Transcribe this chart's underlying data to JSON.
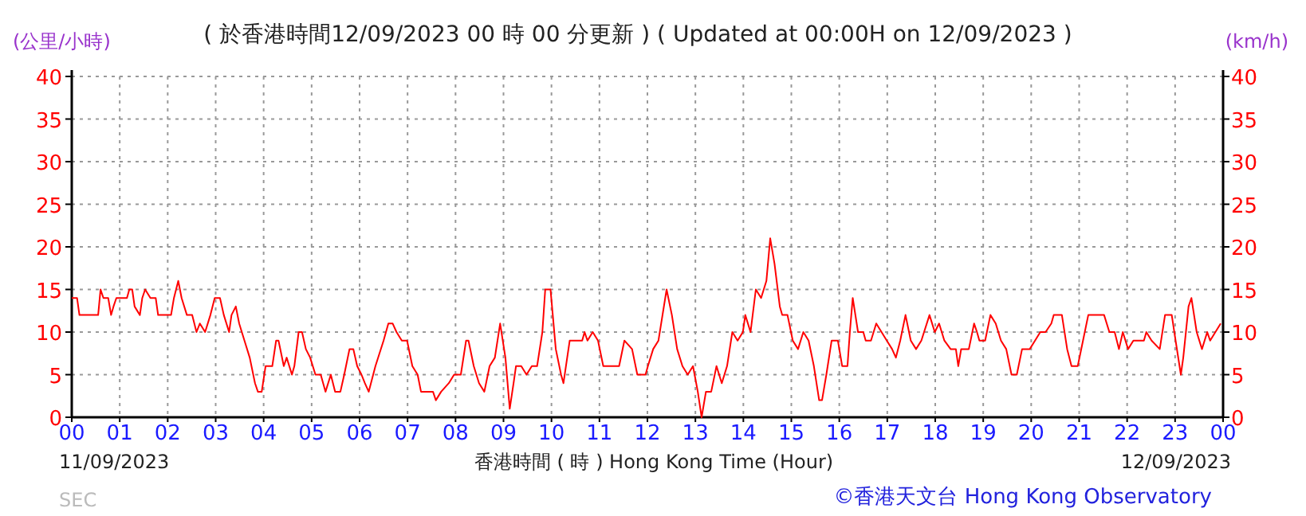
{
  "chart_data": {
    "type": "line",
    "title": "( 於香港時間12/09/2023 00 時 00 分更新 ) ( Updated at 00:00H on 12/09/2023 )",
    "ylabel": "(公里/小時)",
    "y2label": "(km/h)",
    "xlabel": "香港時間 ( 時 ) Hong Kong Time (Hour)",
    "annotations": [
      "11/09/2023",
      "12/09/2023",
      "SEC",
      "©香港天文台 Hong Kong Observatory"
    ],
    "xlim": [
      0,
      24
    ],
    "xticks": [
      {
        "value": 0,
        "label": "00"
      },
      {
        "value": 1,
        "label": "01"
      },
      {
        "value": 2,
        "label": "02"
      },
      {
        "value": 3,
        "label": "03"
      },
      {
        "value": 4,
        "label": "04"
      },
      {
        "value": 5,
        "label": "05"
      },
      {
        "value": 6,
        "label": "06"
      },
      {
        "value": 7,
        "label": "07"
      },
      {
        "value": 8,
        "label": "08"
      },
      {
        "value": 9,
        "label": "09"
      },
      {
        "value": 10,
        "label": "10"
      },
      {
        "value": 11,
        "label": "11"
      },
      {
        "value": 12,
        "label": "12"
      },
      {
        "value": 13,
        "label": "13"
      },
      {
        "value": 14,
        "label": "14"
      },
      {
        "value": 15,
        "label": "15"
      },
      {
        "value": 16,
        "label": "16"
      },
      {
        "value": 17,
        "label": "17"
      },
      {
        "value": 18,
        "label": "18"
      },
      {
        "value": 19,
        "label": "19"
      },
      {
        "value": 20,
        "label": "20"
      },
      {
        "value": 21,
        "label": "21"
      },
      {
        "value": 22,
        "label": "22"
      },
      {
        "value": 23,
        "label": "23"
      },
      {
        "value": 24,
        "label": "00"
      }
    ],
    "ylim": [
      0,
      40
    ],
    "yticks": [
      0,
      5,
      10,
      15,
      20,
      25,
      30,
      35,
      40
    ],
    "y2lim": [
      0,
      40
    ],
    "y2ticks": [
      0,
      5,
      10,
      15,
      20,
      25,
      30,
      35,
      40
    ],
    "grid": true,
    "line_style": "solid",
    "marker": "none",
    "series": [
      {
        "color": "#ff0000",
        "x": [
          0,
          0.11,
          0.16,
          0.55,
          0.6,
          0.66,
          0.76,
          0.82,
          0.87,
          0.93,
          1.15,
          1.2,
          1.26,
          1.31,
          1.42,
          1.47,
          1.53,
          1.64,
          1.75,
          1.8,
          1.97,
          2.07,
          2.13,
          2.22,
          2.29,
          2.4,
          2.51,
          2.6,
          2.67,
          2.78,
          2.89,
          2.98,
          3.09,
          3.17,
          3.28,
          3.33,
          3.42,
          3.49,
          3.6,
          3.71,
          3.82,
          3.88,
          3.96,
          4.04,
          4.18,
          4.26,
          4.31,
          4.42,
          4.48,
          4.59,
          4.64,
          4.73,
          4.8,
          4.88,
          4.97,
          5.08,
          5.19,
          5.29,
          5.4,
          5.49,
          5.6,
          5.68,
          5.79,
          5.87,
          5.95,
          6.04,
          6.11,
          6.19,
          6.33,
          6.5,
          6.6,
          6.69,
          6.77,
          6.88,
          6.99,
          7.1,
          7.21,
          7.28,
          7.42,
          7.53,
          7.59,
          7.7,
          7.86,
          7.97,
          8.11,
          8.22,
          8.27,
          8.38,
          8.49,
          8.6,
          8.71,
          8.82,
          8.93,
          9.04,
          9.13,
          9.21,
          9.26,
          9.37,
          9.48,
          9.59,
          9.7,
          9.81,
          9.87,
          9.98,
          10.09,
          10.2,
          10.25,
          10.38,
          10.64,
          10.69,
          10.75,
          10.86,
          10.97,
          11.08,
          11.41,
          11.52,
          11.68,
          11.79,
          11.96,
          12.01,
          12.12,
          12.23,
          12.4,
          12.51,
          12.62,
          12.73,
          12.84,
          12.95,
          13.05,
          13.13,
          13.22,
          13.33,
          13.44,
          13.55,
          13.66,
          13.77,
          13.88,
          13.99,
          14.04,
          14.15,
          14.26,
          14.37,
          14.48,
          14.56,
          14.65,
          14.76,
          14.81,
          14.92,
          15.03,
          15.14,
          15.25,
          15.36,
          15.47,
          15.58,
          15.64,
          15.73,
          15.84,
          15.97,
          16.06,
          16.17,
          16.22,
          16.28,
          16.39,
          16.5,
          16.55,
          16.66,
          16.77,
          16.88,
          16.99,
          17.1,
          17.18,
          17.27,
          17.38,
          17.49,
          17.6,
          17.71,
          17.88,
          17.99,
          18.08,
          18.19,
          18.32,
          18.43,
          18.48,
          18.54,
          18.7,
          18.81,
          18.87,
          18.92,
          19.04,
          19.15,
          19.26,
          19.37,
          19.48,
          19.59,
          19.7,
          19.81,
          19.97,
          20.08,
          20.19,
          20.3,
          20.42,
          20.47,
          20.64,
          20.75,
          20.84,
          20.97,
          21.08,
          21.19,
          21.3,
          21.52,
          21.63,
          21.74,
          21.83,
          21.91,
          22.02,
          22.13,
          22.35,
          22.4,
          22.51,
          22.68,
          22.79,
          22.93,
          23.01,
          23.12,
          23.17,
          23.28,
          23.34,
          23.45,
          23.56,
          23.67,
          23.73,
          23.84,
          23.95
        ],
        "values": [
          14,
          14,
          12,
          12,
          15,
          14,
          14,
          12,
          13,
          14,
          14,
          15,
          15,
          13,
          12,
          14,
          15,
          14,
          14,
          12,
          12,
          12,
          14,
          16,
          14,
          12,
          12,
          10,
          11,
          10,
          12,
          14,
          14,
          12,
          10,
          12,
          13,
          11,
          9,
          7,
          4,
          3,
          3,
          6,
          6,
          9,
          9,
          6,
          7,
          5,
          6,
          10,
          10,
          8,
          7,
          5,
          5,
          3,
          5,
          3,
          3,
          5,
          8,
          8,
          6,
          5,
          4,
          3,
          6,
          9,
          11,
          11,
          10,
          9,
          9,
          6,
          5,
          3,
          3,
          3,
          2,
          3,
          4,
          5,
          5,
          9,
          9,
          6,
          4,
          3,
          6,
          7,
          11,
          7,
          1,
          4,
          6,
          6,
          5,
          6,
          6,
          10,
          15,
          15,
          8,
          5,
          4,
          9,
          9,
          10,
          9,
          10,
          9,
          6,
          6,
          9,
          8,
          5,
          5,
          6,
          8,
          9,
          15,
          12,
          8,
          6,
          5,
          6,
          3,
          0,
          3,
          3,
          6,
          4,
          6,
          10,
          9,
          10,
          12,
          10,
          15,
          14,
          16,
          21,
          18,
          13,
          12,
          12,
          9,
          8,
          10,
          9,
          6,
          2,
          2,
          5,
          9,
          9,
          6,
          6,
          10,
          14,
          10,
          10,
          9,
          9,
          11,
          10,
          9,
          8,
          7,
          9,
          12,
          9,
          8,
          9,
          12,
          10,
          11,
          9,
          8,
          8,
          6,
          8,
          8,
          11,
          10,
          9,
          9,
          12,
          11,
          9,
          8,
          5,
          5,
          8,
          8,
          9,
          10,
          10,
          11,
          12,
          12,
          8,
          6,
          6,
          9,
          12,
          12,
          12,
          10,
          10,
          8,
          10,
          8,
          9,
          9,
          10,
          9,
          8,
          12,
          12,
          9,
          5,
          7,
          13,
          14,
          10,
          8,
          10,
          9,
          10,
          11
        ]
      }
    ]
  }
}
